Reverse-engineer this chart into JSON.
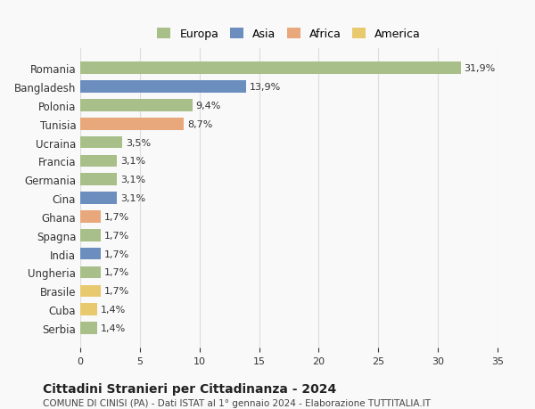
{
  "countries": [
    "Romania",
    "Bangladesh",
    "Polonia",
    "Tunisia",
    "Ucraina",
    "Francia",
    "Germania",
    "Cina",
    "Ghana",
    "Spagna",
    "India",
    "Ungheria",
    "Brasile",
    "Cuba",
    "Serbia"
  ],
  "values": [
    31.9,
    13.9,
    9.4,
    8.7,
    3.5,
    3.1,
    3.1,
    3.1,
    1.7,
    1.7,
    1.7,
    1.7,
    1.7,
    1.4,
    1.4
  ],
  "labels": [
    "31,9%",
    "13,9%",
    "9,4%",
    "8,7%",
    "3,5%",
    "3,1%",
    "3,1%",
    "3,1%",
    "1,7%",
    "1,7%",
    "1,7%",
    "1,7%",
    "1,7%",
    "1,4%",
    "1,4%"
  ],
  "colors": [
    "#a8bf8a",
    "#6c8ebf",
    "#a8bf8a",
    "#e8a87c",
    "#a8bf8a",
    "#a8bf8a",
    "#a8bf8a",
    "#6c8ebf",
    "#e8a87c",
    "#a8bf8a",
    "#6c8ebf",
    "#a8bf8a",
    "#e8c96e",
    "#e8c96e",
    "#a8bf8a"
  ],
  "legend_labels": [
    "Europa",
    "Asia",
    "Africa",
    "America"
  ],
  "legend_colors": [
    "#a8bf8a",
    "#6c8ebf",
    "#e8a87c",
    "#e8c96e"
  ],
  "xlim": [
    0,
    35
  ],
  "xticks": [
    0,
    5,
    10,
    15,
    20,
    25,
    30,
    35
  ],
  "title": "Cittadini Stranieri per Cittadinanza - 2024",
  "subtitle": "COMUNE DI CINISI (PA) - Dati ISTAT al 1° gennaio 2024 - Elaborazione TUTTITALIA.IT",
  "background_color": "#f9f9f9",
  "grid_color": "#dddddd"
}
